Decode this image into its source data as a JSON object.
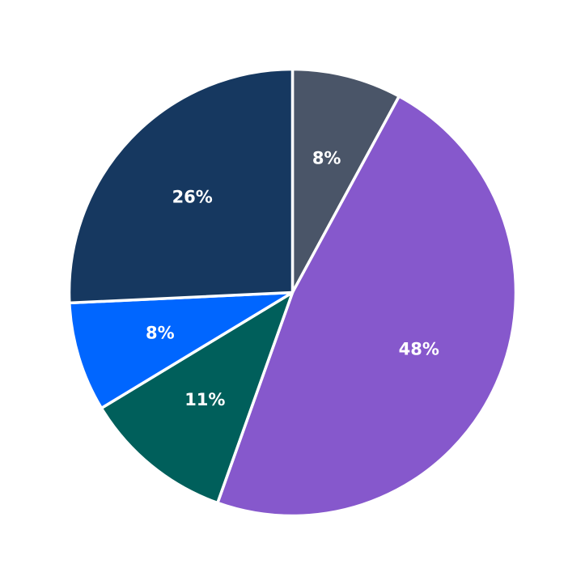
{
  "chart_data": {
    "type": "pie",
    "values": [
      8,
      48,
      11,
      8,
      26
    ],
    "labels": [
      "8%",
      "48%",
      "11%",
      "8%",
      "26%"
    ],
    "colors": [
      "#4a5568",
      "#8658cc",
      "#005f5b",
      "#0066ff",
      "#163860"
    ],
    "start_direction": "top",
    "direction": "clockwise"
  }
}
